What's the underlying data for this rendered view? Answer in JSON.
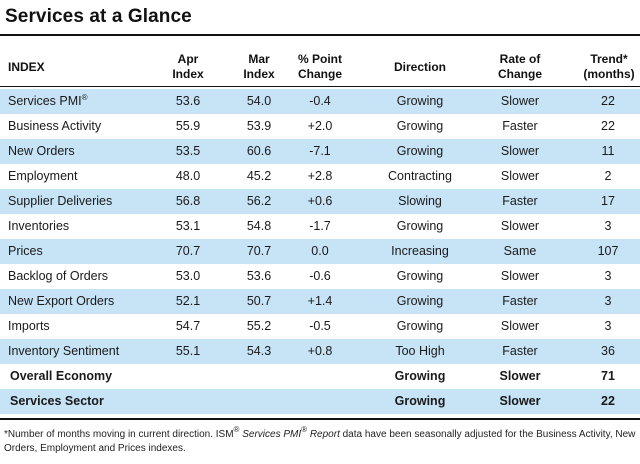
{
  "title": "Services at a Glance",
  "header": {
    "index": "INDEX",
    "apr_1": "Apr",
    "apr_2": "Index",
    "mar_1": "Mar",
    "mar_2": "Index",
    "chg_1": "% Point",
    "chg_2": "Change",
    "direction": "Direction",
    "rate_1": "Rate of",
    "rate_2": "Change",
    "trend_1": "Trend*",
    "trend_2": "(months)"
  },
  "rows": [
    {
      "name": "Services PMI",
      "sup": "®",
      "apr": "53.6",
      "mar": "54.0",
      "change": "-0.4",
      "direction": "Growing",
      "rate": "Slower",
      "trend": "22"
    },
    {
      "name": "Business Activity",
      "sup": "",
      "apr": "55.9",
      "mar": "53.9",
      "change": "+2.0",
      "direction": "Growing",
      "rate": "Faster",
      "trend": "22"
    },
    {
      "name": "New Orders",
      "sup": "",
      "apr": "53.5",
      "mar": "60.6",
      "change": "-7.1",
      "direction": "Growing",
      "rate": "Slower",
      "trend": "11"
    },
    {
      "name": "Employment",
      "sup": "",
      "apr": "48.0",
      "mar": "45.2",
      "change": "+2.8",
      "direction": "Contracting",
      "rate": "Slower",
      "trend": "2"
    },
    {
      "name": "Supplier Deliveries",
      "sup": "",
      "apr": "56.8",
      "mar": "56.2",
      "change": "+0.6",
      "direction": "Slowing",
      "rate": "Faster",
      "trend": "17"
    },
    {
      "name": "Inventories",
      "sup": "",
      "apr": "53.1",
      "mar": "54.8",
      "change": "-1.7",
      "direction": "Growing",
      "rate": "Slower",
      "trend": "3"
    },
    {
      "name": "Prices",
      "sup": "",
      "apr": "70.7",
      "mar": "70.7",
      "change": "0.0",
      "direction": "Increasing",
      "rate": "Same",
      "trend": "107"
    },
    {
      "name": "Backlog of Orders",
      "sup": "",
      "apr": "53.0",
      "mar": "53.6",
      "change": "-0.6",
      "direction": "Growing",
      "rate": "Slower",
      "trend": "3"
    },
    {
      "name": "New Export Orders",
      "sup": "",
      "apr": "52.1",
      "mar": "50.7",
      "change": "+1.4",
      "direction": "Growing",
      "rate": "Faster",
      "trend": "3"
    },
    {
      "name": "Imports",
      "sup": "",
      "apr": "54.7",
      "mar": "55.2",
      "change": "-0.5",
      "direction": "Growing",
      "rate": "Slower",
      "trend": "3"
    },
    {
      "name": "Inventory Sentiment",
      "sup": "",
      "apr": "55.1",
      "mar": "54.3",
      "change": "+0.8",
      "direction": "Too High",
      "rate": "Faster",
      "trend": "36"
    }
  ],
  "summary_rows": [
    {
      "name": "Overall Economy",
      "direction": "Growing",
      "rate": "Slower",
      "trend": "71"
    },
    {
      "name": "Services Sector",
      "direction": "Growing",
      "rate": "Slower",
      "trend": "22"
    }
  ],
  "footnote": {
    "part1": "*Number of months moving in current direction. ISM",
    "reg": "®",
    "italic": "Services PMI",
    "reg2": "®",
    "italic2": "Report",
    "part2": " data have been seasonally adjusted for the Business Activity, New Orders, Employment and Prices indexes."
  },
  "colors": {
    "row_blue": "#c7e3f6",
    "row_white": "#ffffff",
    "rule": "#111111"
  }
}
